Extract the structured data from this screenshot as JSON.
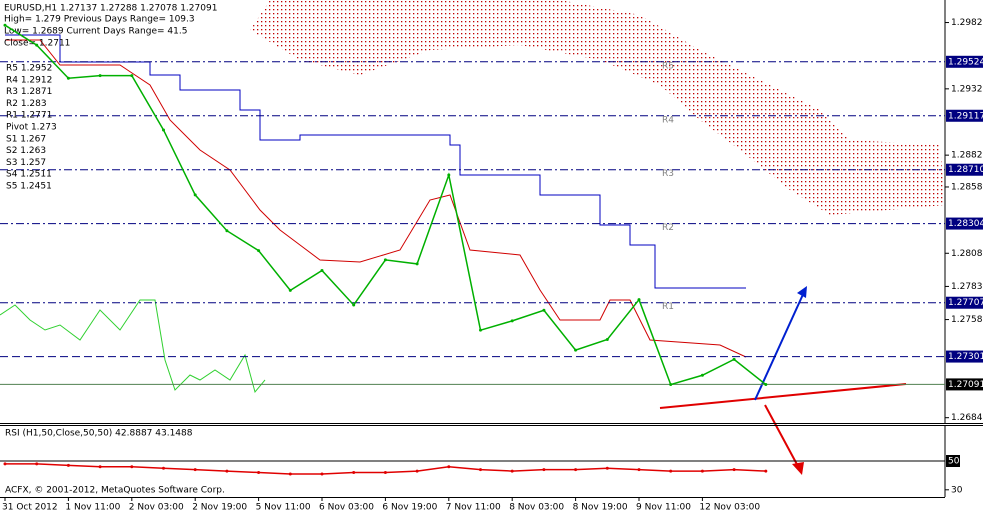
{
  "chart_data": [
    {
      "type": "line",
      "info": [
        "EURUSD,H1  1.27137 1.27288 1.27078 1.27091",
        "High= 1.279   Previous Days Range= 109.3",
        "Low= 1.2689   Current Days Range= 41.5",
        "Close= 1.2711"
      ],
      "pivots": [
        "R5 1.2952",
        "R4 1.2912",
        "R3 1.2871",
        "R2 1.283",
        "R1 1.2771",
        "Pivot 1.273",
        "S1 1.267",
        "S2 1.263",
        "S3 1.257",
        "S4 1.2511",
        "S5 1.2451"
      ],
      "categories": [
        "31 Oct 2012",
        null,
        "1 Nov 11:00",
        null,
        "2 Nov 03:00",
        null,
        "2 Nov 19:00",
        null,
        "5 Nov 11:00",
        null,
        "6 Nov 03:00",
        null,
        "6 Nov 19:00",
        null,
        "7 Nov 11:00",
        null,
        "8 Nov 03:00",
        null,
        "8 Nov 19:00",
        null,
        "9 Nov 11:00",
        null,
        "12 Nov 03:00",
        null,
        null
      ],
      "values": [
        1.298,
        1.2965,
        1.294,
        1.2942,
        1.2942,
        1.2901,
        1.2852,
        1.2825,
        1.281,
        1.278,
        1.2795,
        1.2769,
        1.2803,
        1.28,
        1.2867,
        1.275,
        1.2757,
        1.2765,
        1.2735,
        1.2743,
        1.2773,
        1.2709,
        1.2716,
        1.2728,
        1.2709
      ],
      "color": "#00b000",
      "ylim": [
        1.268,
        1.2999
      ],
      "yticks": [
        {
          "value": 1.2982,
          "label": "1.29820"
        },
        {
          "value": 1.2932,
          "label": "1.29320"
        },
        {
          "value": 1.2882,
          "label": "1.28820"
        },
        {
          "value": 1.2858,
          "label": "1.28580"
        },
        {
          "value": 1.2808,
          "label": "1.28080"
        },
        {
          "value": 1.2783,
          "label": "1.27830"
        },
        {
          "value": 1.2758,
          "label": "1.27580"
        },
        {
          "value": 1.2684,
          "label": "1.26840"
        }
      ],
      "levels": [
        {
          "value": 1.29524,
          "label": "1.29524"
        },
        {
          "value": 1.29117,
          "label": "1.29117"
        },
        {
          "value": 1.2871,
          "label": "1.28710"
        },
        {
          "value": 1.28304,
          "label": "1.28304"
        },
        {
          "value": 1.27707,
          "label": "1.27707"
        },
        {
          "value": 1.27301,
          "label": "1.27301"
        },
        {
          "value": 1.27091,
          "label": "1.27091"
        }
      ],
      "level_tags": [
        "R5",
        "R4",
        "R3",
        "R2",
        "R1"
      ]
    },
    {
      "type": "line",
      "title": "RSI (H1,50,Close,50,50) 42.8887 43.1488",
      "footer": "ACFX, © 2001-2012, MetaQuotes Software Corp.",
      "values": [
        48,
        48,
        47,
        46,
        46,
        45,
        44,
        43,
        42,
        41,
        41,
        42,
        42,
        43,
        46,
        44,
        43,
        44,
        44,
        45,
        44,
        43,
        43,
        44,
        43
      ],
      "color": "#e00000",
      "ylim": [
        25,
        75
      ],
      "yticks": [
        50,
        30
      ]
    }
  ]
}
